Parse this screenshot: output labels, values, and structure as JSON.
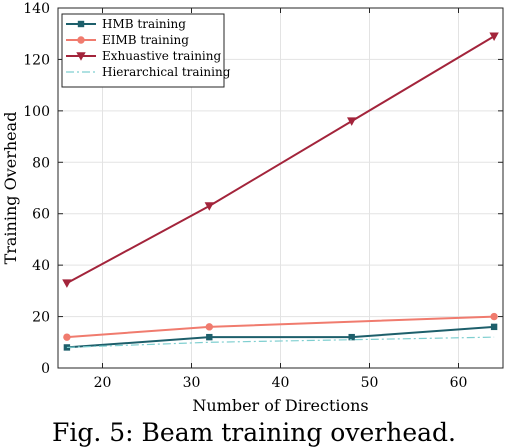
{
  "chart_data": {
    "type": "line",
    "xlabel": "Number of Directions",
    "ylabel": "Training Overhead",
    "xlim": [
      15,
      65
    ],
    "ylim": [
      0,
      140
    ],
    "xticks": [
      20,
      30,
      40,
      50,
      60
    ],
    "yticks": [
      0,
      20,
      40,
      60,
      80,
      100,
      120,
      140
    ],
    "grid": true,
    "legend_position": "top-left",
    "series": [
      {
        "name": "HMB training",
        "color": "#1d5f6b",
        "marker": "square",
        "style": "solid",
        "x": [
          16,
          32,
          48,
          64
        ],
        "y": [
          8,
          12,
          12,
          16
        ]
      },
      {
        "name": "EIMB training",
        "color": "#f07b6e",
        "marker": "circle",
        "style": "solid",
        "x": [
          16,
          32,
          64
        ],
        "y": [
          12,
          16,
          20
        ]
      },
      {
        "name": "Exhuastive training",
        "color": "#a3243b",
        "marker": "triangle-down",
        "style": "solid",
        "x": [
          16,
          32,
          48,
          64
        ],
        "y": [
          33,
          63,
          96,
          129
        ]
      },
      {
        "name": "Hierarchical training",
        "color": "#7fcfd0",
        "marker": "none",
        "style": "dashdot",
        "x": [
          16,
          32,
          64
        ],
        "y": [
          8,
          10,
          12
        ]
      }
    ]
  },
  "caption": "Fig. 5: Beam training overhead."
}
